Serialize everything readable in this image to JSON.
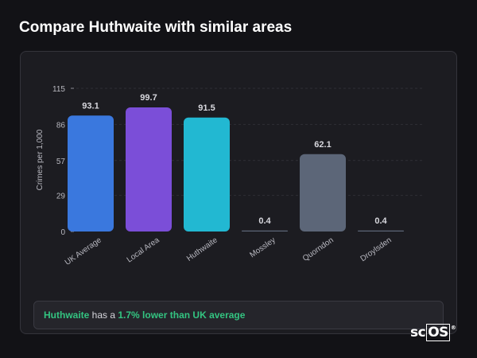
{
  "title": "Compare Huthwaite with similar areas",
  "chart_data": {
    "type": "bar",
    "categories": [
      "UK Average",
      "Local Area",
      "Huthwaite",
      "Mossley",
      "Quorndon",
      "Droylsden"
    ],
    "values": [
      93.1,
      99.7,
      91.5,
      0.4,
      62.1,
      0.4
    ],
    "value_labels": [
      "93.1",
      "99.7",
      "91.5",
      "0.4",
      "62.1",
      "0.4"
    ],
    "colors": [
      "#3a78de",
      "#7b4ed8",
      "#22b8d2",
      "#5c6678",
      "#5c6678",
      "#5c6678"
    ],
    "ylabel": "Crimes per 1,000",
    "xlabel": "",
    "yticks": [
      0,
      29,
      57,
      86,
      115
    ],
    "ylim": [
      0,
      115
    ],
    "grid": true
  },
  "callout": {
    "area": "Huthwaite",
    "middle": " has a ",
    "comparison": "1.7% lower than UK average"
  },
  "logo": {
    "text": "sc",
    "boxed": "OS",
    "mark": "®"
  }
}
